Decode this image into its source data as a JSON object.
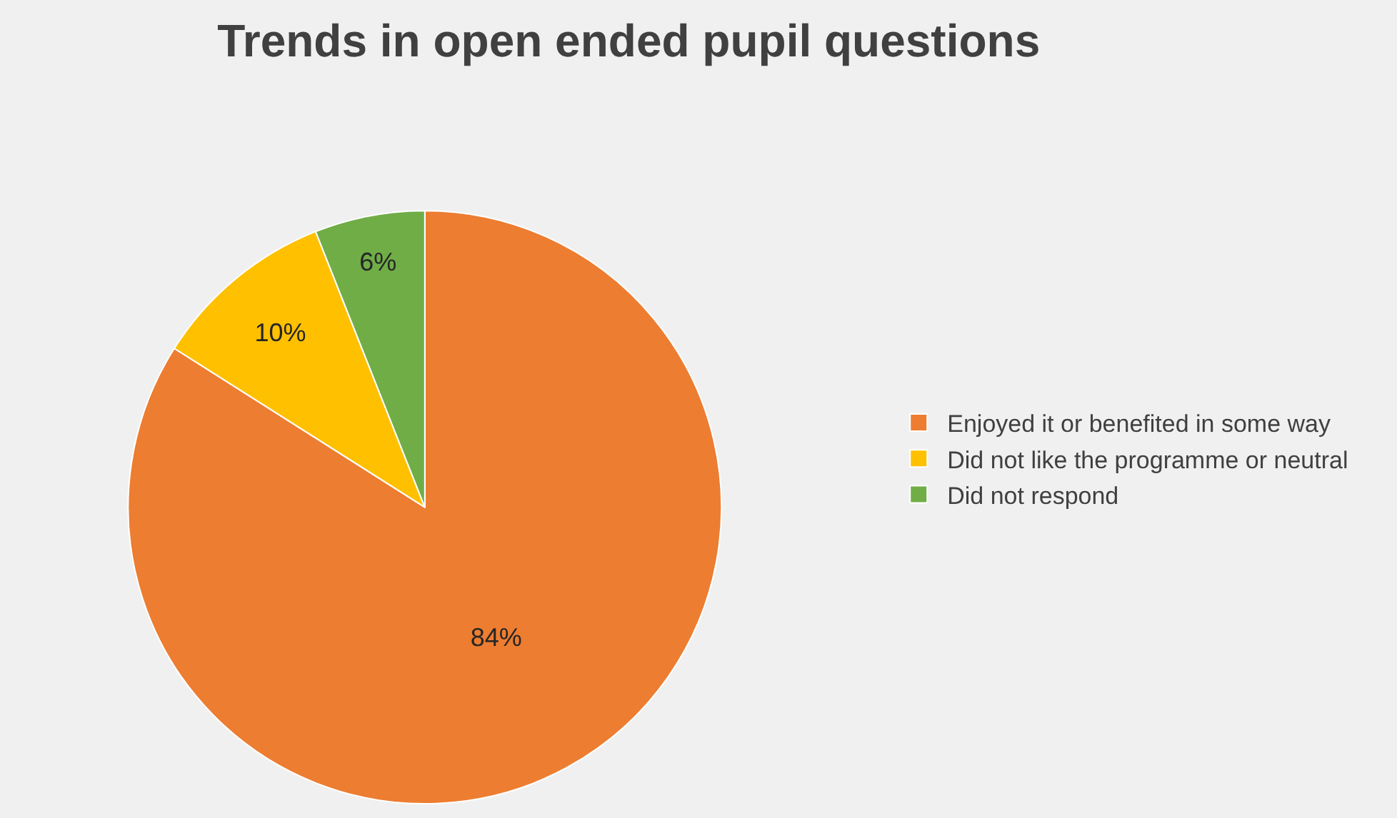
{
  "chart_data": {
    "type": "pie",
    "title": "Trends in open ended pupil questions",
    "categories": [
      "Enjoyed it or benefited in some way",
      "Did not like the programme or neutral",
      "Did not respond"
    ],
    "values": [
      84,
      10,
      6
    ],
    "colors": [
      "#ed7d31",
      "#ffc000",
      "#70ad47"
    ],
    "value_labels": [
      "84%",
      "10%",
      "6%"
    ],
    "legend": "right"
  }
}
